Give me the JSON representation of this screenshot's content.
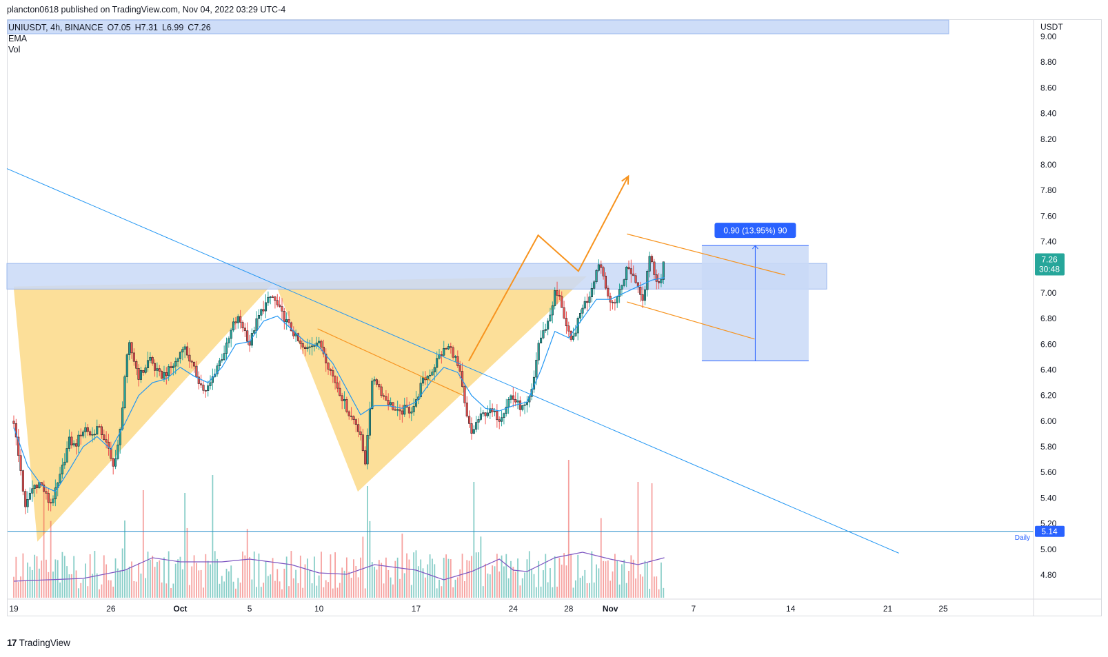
{
  "publish_line": "plancton0618 published on TradingView.com, Nov 04, 2022 03:29 UTC-4",
  "legend": {
    "symbol": "UNIUSDT, 4h, BINANCE",
    "ohlc": [
      {
        "label": "O",
        "value": "7.05"
      },
      {
        "label": "H",
        "value": "7.31"
      },
      {
        "label": "L",
        "value": "6.99"
      },
      {
        "label": "C",
        "value": "7.26"
      }
    ],
    "indicators": [
      "EMA",
      "Vol"
    ]
  },
  "footer": {
    "brand": "TradingView"
  },
  "colors": {
    "up": "#26a69a",
    "down": "#ef5350",
    "ema": "#2196f3",
    "vol_ma": "#7e57c2",
    "pattern": "#fcdb8e",
    "zone": "#c9d9f7",
    "trend": "#2196f3",
    "arrow": "#f7931e"
  },
  "chart_data": {
    "type": "candlestick",
    "symbol": "UNIUSDT",
    "timeframe": "4h",
    "exchange": "BINANCE",
    "currency": "USDT",
    "ylim": [
      4.6,
      9.0
    ],
    "y_ticks": [
      "9.00",
      "8.80",
      "8.60",
      "8.40",
      "8.20",
      "8.00",
      "7.80",
      "7.60",
      "7.40",
      "7.20",
      "7.00",
      "6.80",
      "6.60",
      "6.40",
      "6.20",
      "6.00",
      "5.80",
      "5.60",
      "5.40",
      "5.20",
      "5.00",
      "4.80"
    ],
    "x_ticks": [
      {
        "label": "19",
        "day": 0
      },
      {
        "label": "26",
        "day": 7
      },
      {
        "label": "Oct",
        "day": 12
      },
      {
        "label": "5",
        "day": 17
      },
      {
        "label": "10",
        "day": 22
      },
      {
        "label": "17",
        "day": 29
      },
      {
        "label": "24",
        "day": 36
      },
      {
        "label": "28",
        "day": 40
      },
      {
        "label": "Nov",
        "day": 43
      },
      {
        "label": "7",
        "day": 49
      },
      {
        "label": "14",
        "day": 56
      },
      {
        "label": "21",
        "day": 63
      },
      {
        "label": "25",
        "day": 67
      }
    ],
    "bold_x_ticks": [
      "Oct",
      "Nov"
    ],
    "close_path": [
      [
        0.0,
        6.0
      ],
      [
        0.3,
        5.75
      ],
      [
        0.6,
        5.55
      ],
      [
        0.8,
        5.3
      ],
      [
        1.2,
        5.45
      ],
      [
        1.5,
        5.5
      ],
      [
        1.9,
        5.52
      ],
      [
        2.2,
        5.45
      ],
      [
        2.6,
        5.35
      ],
      [
        3.0,
        5.45
      ],
      [
        3.3,
        5.55
      ],
      [
        3.6,
        5.68
      ],
      [
        4.0,
        5.85
      ],
      [
        4.4,
        5.8
      ],
      [
        4.8,
        5.9
      ],
      [
        5.2,
        5.95
      ],
      [
        5.6,
        5.88
      ],
      [
        6.0,
        5.95
      ],
      [
        6.4,
        5.9
      ],
      [
        6.8,
        5.78
      ],
      [
        7.1,
        5.66
      ],
      [
        7.4,
        5.72
      ],
      [
        7.7,
        5.95
      ],
      [
        8.0,
        6.35
      ],
      [
        8.3,
        6.6
      ],
      [
        8.6,
        6.5
      ],
      [
        9.0,
        6.35
      ],
      [
        9.4,
        6.4
      ],
      [
        9.8,
        6.5
      ],
      [
        10.2,
        6.4
      ],
      [
        10.6,
        6.35
      ],
      [
        11.0,
        6.38
      ],
      [
        11.4,
        6.42
      ],
      [
        11.8,
        6.48
      ],
      [
        12.2,
        6.6
      ],
      [
        12.6,
        6.5
      ],
      [
        13.0,
        6.4
      ],
      [
        13.4,
        6.3
      ],
      [
        13.8,
        6.22
      ],
      [
        14.2,
        6.3
      ],
      [
        14.6,
        6.42
      ],
      [
        15.0,
        6.5
      ],
      [
        15.4,
        6.6
      ],
      [
        15.8,
        6.75
      ],
      [
        16.2,
        6.8
      ],
      [
        16.6,
        6.72
      ],
      [
        17.0,
        6.6
      ],
      [
        17.4,
        6.75
      ],
      [
        17.8,
        6.85
      ],
      [
        18.2,
        6.92
      ],
      [
        18.6,
        6.98
      ],
      [
        19.0,
        6.9
      ],
      [
        19.4,
        6.82
      ],
      [
        19.8,
        6.75
      ],
      [
        20.2,
        6.68
      ],
      [
        20.6,
        6.6
      ],
      [
        21.0,
        6.55
      ],
      [
        21.4,
        6.6
      ],
      [
        21.8,
        6.62
      ],
      [
        22.2,
        6.58
      ],
      [
        22.6,
        6.45
      ],
      [
        23.0,
        6.35
      ],
      [
        23.4,
        6.25
      ],
      [
        23.8,
        6.15
      ],
      [
        24.2,
        6.05
      ],
      [
        24.6,
        6.0
      ],
      [
        25.0,
        5.9
      ],
      [
        25.3,
        5.62
      ],
      [
        25.6,
        6.05
      ],
      [
        25.9,
        6.35
      ],
      [
        26.2,
        6.3
      ],
      [
        26.6,
        6.2
      ],
      [
        27.0,
        6.15
      ],
      [
        27.4,
        6.1
      ],
      [
        27.8,
        6.05
      ],
      [
        28.2,
        6.1
      ],
      [
        28.6,
        6.08
      ],
      [
        29.0,
        6.15
      ],
      [
        29.4,
        6.3
      ],
      [
        29.8,
        6.35
      ],
      [
        30.2,
        6.4
      ],
      [
        30.6,
        6.5
      ],
      [
        31.0,
        6.55
      ],
      [
        31.4,
        6.58
      ],
      [
        31.8,
        6.5
      ],
      [
        32.2,
        6.35
      ],
      [
        32.6,
        6.05
      ],
      [
        33.0,
        5.9
      ],
      [
        33.4,
        6.0
      ],
      [
        33.8,
        6.05
      ],
      [
        34.2,
        6.08
      ],
      [
        34.6,
        6.06
      ],
      [
        35.0,
        6.02
      ],
      [
        35.4,
        6.1
      ],
      [
        35.8,
        6.2
      ],
      [
        36.2,
        6.15
      ],
      [
        36.6,
        6.1
      ],
      [
        37.0,
        6.12
      ],
      [
        37.4,
        6.25
      ],
      [
        37.8,
        6.6
      ],
      [
        38.2,
        6.7
      ],
      [
        38.6,
        6.8
      ],
      [
        39.0,
        7.0
      ],
      [
        39.4,
        6.95
      ],
      [
        39.8,
        6.75
      ],
      [
        40.2,
        6.6
      ],
      [
        40.6,
        6.75
      ],
      [
        41.0,
        6.9
      ],
      [
        41.4,
        6.95
      ],
      [
        41.8,
        7.1
      ],
      [
        42.2,
        7.25
      ],
      [
        42.6,
        7.1
      ],
      [
        43.0,
        6.9
      ],
      [
        43.4,
        6.95
      ],
      [
        43.8,
        7.05
      ],
      [
        44.2,
        7.2
      ],
      [
        44.6,
        7.15
      ],
      [
        45.0,
        7.05
      ],
      [
        45.4,
        6.95
      ],
      [
        45.8,
        7.3
      ],
      [
        46.2,
        7.15
      ],
      [
        46.6,
        7.05
      ],
      [
        46.9,
        7.26
      ]
    ],
    "ema_path": [
      [
        0.0,
        5.95
      ],
      [
        1.0,
        5.65
      ],
      [
        2.0,
        5.5
      ],
      [
        3.0,
        5.45
      ],
      [
        4.0,
        5.62
      ],
      [
        5.0,
        5.8
      ],
      [
        6.0,
        5.88
      ],
      [
        7.0,
        5.78
      ],
      [
        8.0,
        5.98
      ],
      [
        9.0,
        6.2
      ],
      [
        10.0,
        6.3
      ],
      [
        11.0,
        6.33
      ],
      [
        12.0,
        6.42
      ],
      [
        13.0,
        6.35
      ],
      [
        14.0,
        6.3
      ],
      [
        15.0,
        6.42
      ],
      [
        16.0,
        6.6
      ],
      [
        17.0,
        6.62
      ],
      [
        18.0,
        6.78
      ],
      [
        19.0,
        6.82
      ],
      [
        20.0,
        6.72
      ],
      [
        21.0,
        6.62
      ],
      [
        22.0,
        6.58
      ],
      [
        23.0,
        6.45
      ],
      [
        24.0,
        6.25
      ],
      [
        25.0,
        6.05
      ],
      [
        26.0,
        6.12
      ],
      [
        27.0,
        6.12
      ],
      [
        28.0,
        6.1
      ],
      [
        29.0,
        6.15
      ],
      [
        30.0,
        6.3
      ],
      [
        31.0,
        6.42
      ],
      [
        32.0,
        6.38
      ],
      [
        33.0,
        6.2
      ],
      [
        34.0,
        6.1
      ],
      [
        35.0,
        6.08
      ],
      [
        36.0,
        6.12
      ],
      [
        37.0,
        6.15
      ],
      [
        38.0,
        6.4
      ],
      [
        39.0,
        6.7
      ],
      [
        40.0,
        6.65
      ],
      [
        41.0,
        6.8
      ],
      [
        42.0,
        6.95
      ],
      [
        43.0,
        6.95
      ],
      [
        44.0,
        7.0
      ],
      [
        45.0,
        7.05
      ],
      [
        46.0,
        7.1
      ],
      [
        46.9,
        7.12
      ]
    ],
    "volume_ma": [
      [
        0,
        0.12
      ],
      [
        5,
        0.14
      ],
      [
        8,
        0.2
      ],
      [
        10,
        0.29
      ],
      [
        12,
        0.26
      ],
      [
        15,
        0.26
      ],
      [
        17,
        0.28
      ],
      [
        20,
        0.24
      ],
      [
        22,
        0.18
      ],
      [
        24,
        0.17
      ],
      [
        26,
        0.24
      ],
      [
        29,
        0.2
      ],
      [
        31,
        0.13
      ],
      [
        33,
        0.19
      ],
      [
        35,
        0.28
      ],
      [
        36,
        0.2
      ],
      [
        37,
        0.19
      ],
      [
        39,
        0.29
      ],
      [
        41,
        0.33
      ],
      [
        43,
        0.28
      ],
      [
        45,
        0.24
      ],
      [
        46.9,
        0.29
      ]
    ],
    "volume_spikes": [
      [
        2.1,
        0.85
      ],
      [
        8.0,
        0.56
      ],
      [
        9.4,
        0.78
      ],
      [
        12.3,
        0.76
      ],
      [
        14.4,
        0.89
      ],
      [
        25.5,
        0.81
      ],
      [
        33.2,
        0.84
      ],
      [
        40.0,
        1.0
      ],
      [
        45.0,
        0.84
      ],
      [
        46.0,
        0.83
      ]
    ],
    "drawings": {
      "resistance_zone": {
        "y": [
          7.03,
          7.23
        ],
        "day_range": [
          0,
          58.6
        ]
      },
      "horizontal_line": {
        "y": 5.14,
        "label": "Daily"
      },
      "descending_trendline": [
        [
          0,
          7.97
        ],
        [
          63.8,
          4.97
        ]
      ],
      "inverse_head_and_shoulders": [
        [
          0,
          7.03
        ],
        [
          1.7,
          5.06
        ],
        [
          18.8,
          7.09
        ],
        [
          24.8,
          5.45
        ],
        [
          41.3,
          7.13
        ],
        [
          0,
          7.05
        ]
      ],
      "projection_arrow": [
        [
          32.8,
          6.47
        ],
        [
          37.8,
          7.45
        ],
        [
          40.7,
          7.17
        ],
        [
          44.3,
          7.91
        ]
      ],
      "channel_upper": [
        [
          44.2,
          7.46
        ],
        [
          55.6,
          7.14
        ]
      ],
      "channel_lower": [
        [
          44.2,
          6.93
        ],
        [
          53.4,
          6.64
        ]
      ],
      "flag_pole_line": [
        [
          21.9,
          6.72
        ],
        [
          32.4,
          6.2
        ]
      ],
      "long_position": {
        "day_range": [
          49.6,
          57.3
        ],
        "entry": 6.47,
        "target": 7.37,
        "label": "0.90 (13.95%) 90"
      }
    },
    "last_price": {
      "value": "7.26",
      "countdown": "30:48"
    },
    "line_price_label": "5.14"
  }
}
